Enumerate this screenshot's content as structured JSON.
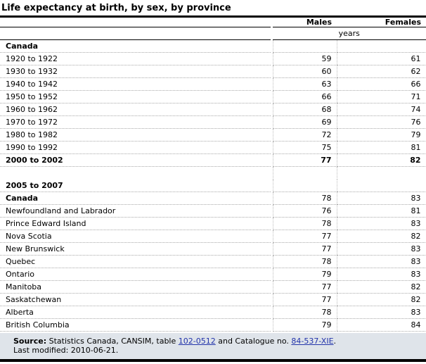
{
  "title": "Life expectancy at birth, by sex, by province",
  "table": {
    "columns": [
      "Males",
      "Females"
    ],
    "unit": "years",
    "rows": [
      {
        "label": "Canada",
        "males": "",
        "females": "",
        "style": "section"
      },
      {
        "label": "1920 to 1922",
        "males": "59",
        "females": "61",
        "style": ""
      },
      {
        "label": "1930 to 1932",
        "males": "60",
        "females": "62",
        "style": ""
      },
      {
        "label": "1940 to 1942",
        "males": "63",
        "females": "66",
        "style": ""
      },
      {
        "label": "1950 to 1952",
        "males": "66",
        "females": "71",
        "style": ""
      },
      {
        "label": "1960 to 1962",
        "males": "68",
        "females": "74",
        "style": ""
      },
      {
        "label": "1970 to 1972",
        "males": "69",
        "females": "76",
        "style": ""
      },
      {
        "label": "1980 to 1982",
        "males": "72",
        "females": "79",
        "style": ""
      },
      {
        "label": "1990 to 1992",
        "males": "75",
        "females": "81",
        "style": ""
      },
      {
        "label": "2000 to 2002",
        "males": "77",
        "females": "82",
        "style": "bold"
      },
      {
        "label": "",
        "males": "",
        "females": "",
        "style": "spacer"
      },
      {
        "label": "2005 to 2007",
        "males": "",
        "females": "",
        "style": "section"
      },
      {
        "label": "Canada",
        "males": "78",
        "females": "83",
        "style": "bold-label"
      },
      {
        "label": "Newfoundland and Labrador",
        "males": "76",
        "females": "81",
        "style": ""
      },
      {
        "label": "Prince Edward Island",
        "males": "78",
        "females": "83",
        "style": ""
      },
      {
        "label": "Nova Scotia",
        "males": "77",
        "females": "82",
        "style": ""
      },
      {
        "label": "New Brunswick",
        "males": "77",
        "females": "83",
        "style": ""
      },
      {
        "label": "Quebec",
        "males": "78",
        "females": "83",
        "style": ""
      },
      {
        "label": "Ontario",
        "males": "79",
        "females": "83",
        "style": ""
      },
      {
        "label": "Manitoba",
        "males": "77",
        "females": "82",
        "style": ""
      },
      {
        "label": "Saskatchewan",
        "males": "77",
        "females": "82",
        "style": ""
      },
      {
        "label": "Alberta",
        "males": "78",
        "females": "83",
        "style": ""
      },
      {
        "label": "British Columbia",
        "males": "79",
        "females": "84",
        "style": ""
      }
    ]
  },
  "footer": {
    "source_label": "Source:",
    "source_text_1": " Statistics Canada, CANSIM, table ",
    "table_link": "102-0512",
    "source_text_2": " and Catalogue no. ",
    "catalogue_link": "84-537-XIE",
    "source_suffix": ".",
    "last_modified": "Last modified: 2010-06-21."
  },
  "colors": {
    "link": "#2233aa",
    "footer_background": "#dfe4ea",
    "rule": "#000000",
    "row_separator": "#a9a9a9"
  }
}
